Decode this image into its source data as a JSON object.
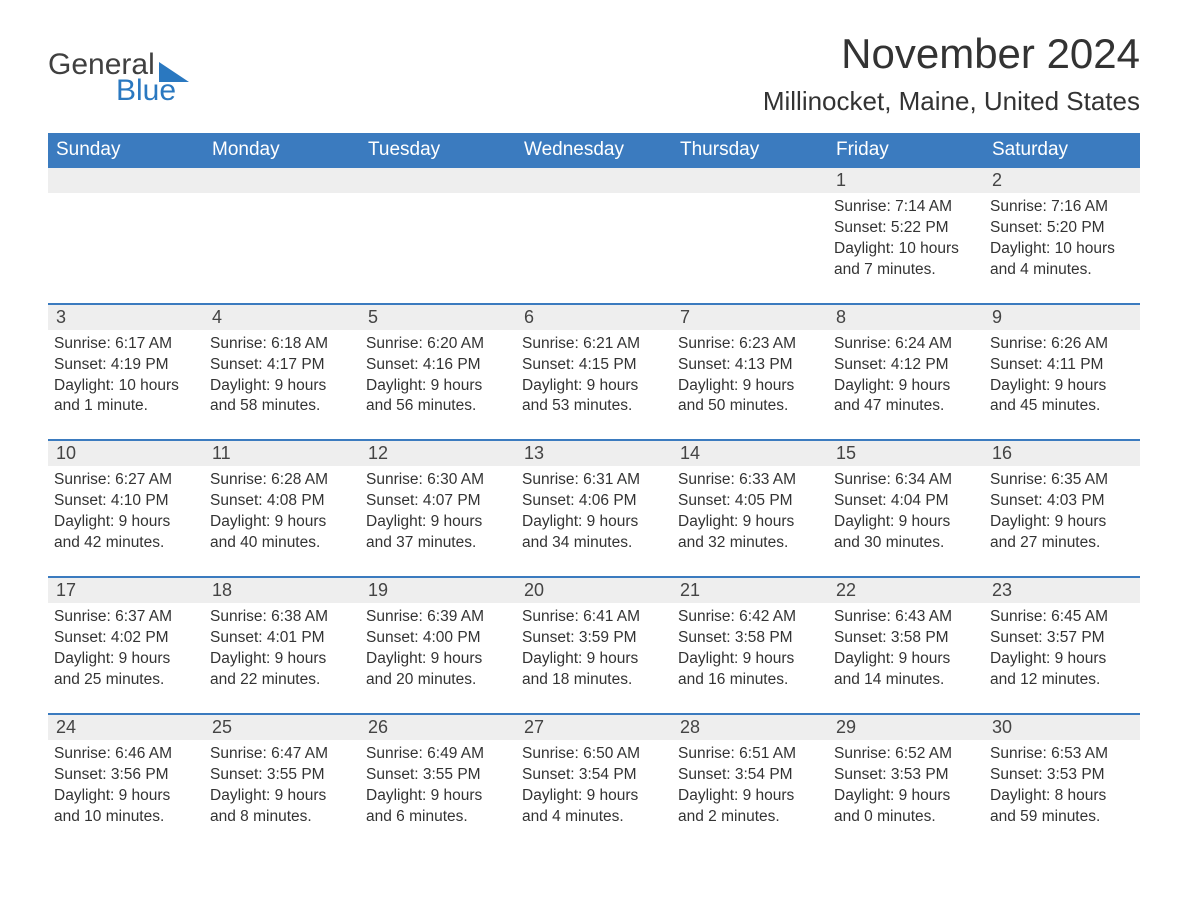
{
  "brand": {
    "word1": "General",
    "word2": "Blue"
  },
  "title": "November 2024",
  "location": "Millinocket, Maine, United States",
  "colors": {
    "header_bg": "#3b7bbf",
    "daynum_bg": "#eeeeee",
    "brand_blue": "#2a78c0",
    "text": "#333333"
  },
  "layout": {
    "columns": 7,
    "start_day_index": 5
  },
  "days_of_week": [
    "Sunday",
    "Monday",
    "Tuesday",
    "Wednesday",
    "Thursday",
    "Friday",
    "Saturday"
  ],
  "days": [
    {
      "n": 1,
      "sunrise": "7:14 AM",
      "sunset": "5:22 PM",
      "daylight": "10 hours and 7 minutes."
    },
    {
      "n": 2,
      "sunrise": "7:16 AM",
      "sunset": "5:20 PM",
      "daylight": "10 hours and 4 minutes."
    },
    {
      "n": 3,
      "sunrise": "6:17 AM",
      "sunset": "4:19 PM",
      "daylight": "10 hours and 1 minute."
    },
    {
      "n": 4,
      "sunrise": "6:18 AM",
      "sunset": "4:17 PM",
      "daylight": "9 hours and 58 minutes."
    },
    {
      "n": 5,
      "sunrise": "6:20 AM",
      "sunset": "4:16 PM",
      "daylight": "9 hours and 56 minutes."
    },
    {
      "n": 6,
      "sunrise": "6:21 AM",
      "sunset": "4:15 PM",
      "daylight": "9 hours and 53 minutes."
    },
    {
      "n": 7,
      "sunrise": "6:23 AM",
      "sunset": "4:13 PM",
      "daylight": "9 hours and 50 minutes."
    },
    {
      "n": 8,
      "sunrise": "6:24 AM",
      "sunset": "4:12 PM",
      "daylight": "9 hours and 47 minutes."
    },
    {
      "n": 9,
      "sunrise": "6:26 AM",
      "sunset": "4:11 PM",
      "daylight": "9 hours and 45 minutes."
    },
    {
      "n": 10,
      "sunrise": "6:27 AM",
      "sunset": "4:10 PM",
      "daylight": "9 hours and 42 minutes."
    },
    {
      "n": 11,
      "sunrise": "6:28 AM",
      "sunset": "4:08 PM",
      "daylight": "9 hours and 40 minutes."
    },
    {
      "n": 12,
      "sunrise": "6:30 AM",
      "sunset": "4:07 PM",
      "daylight": "9 hours and 37 minutes."
    },
    {
      "n": 13,
      "sunrise": "6:31 AM",
      "sunset": "4:06 PM",
      "daylight": "9 hours and 34 minutes."
    },
    {
      "n": 14,
      "sunrise": "6:33 AM",
      "sunset": "4:05 PM",
      "daylight": "9 hours and 32 minutes."
    },
    {
      "n": 15,
      "sunrise": "6:34 AM",
      "sunset": "4:04 PM",
      "daylight": "9 hours and 30 minutes."
    },
    {
      "n": 16,
      "sunrise": "6:35 AM",
      "sunset": "4:03 PM",
      "daylight": "9 hours and 27 minutes."
    },
    {
      "n": 17,
      "sunrise": "6:37 AM",
      "sunset": "4:02 PM",
      "daylight": "9 hours and 25 minutes."
    },
    {
      "n": 18,
      "sunrise": "6:38 AM",
      "sunset": "4:01 PM",
      "daylight": "9 hours and 22 minutes."
    },
    {
      "n": 19,
      "sunrise": "6:39 AM",
      "sunset": "4:00 PM",
      "daylight": "9 hours and 20 minutes."
    },
    {
      "n": 20,
      "sunrise": "6:41 AM",
      "sunset": "3:59 PM",
      "daylight": "9 hours and 18 minutes."
    },
    {
      "n": 21,
      "sunrise": "6:42 AM",
      "sunset": "3:58 PM",
      "daylight": "9 hours and 16 minutes."
    },
    {
      "n": 22,
      "sunrise": "6:43 AM",
      "sunset": "3:58 PM",
      "daylight": "9 hours and 14 minutes."
    },
    {
      "n": 23,
      "sunrise": "6:45 AM",
      "sunset": "3:57 PM",
      "daylight": "9 hours and 12 minutes."
    },
    {
      "n": 24,
      "sunrise": "6:46 AM",
      "sunset": "3:56 PM",
      "daylight": "9 hours and 10 minutes."
    },
    {
      "n": 25,
      "sunrise": "6:47 AM",
      "sunset": "3:55 PM",
      "daylight": "9 hours and 8 minutes."
    },
    {
      "n": 26,
      "sunrise": "6:49 AM",
      "sunset": "3:55 PM",
      "daylight": "9 hours and 6 minutes."
    },
    {
      "n": 27,
      "sunrise": "6:50 AM",
      "sunset": "3:54 PM",
      "daylight": "9 hours and 4 minutes."
    },
    {
      "n": 28,
      "sunrise": "6:51 AM",
      "sunset": "3:54 PM",
      "daylight": "9 hours and 2 minutes."
    },
    {
      "n": 29,
      "sunrise": "6:52 AM",
      "sunset": "3:53 PM",
      "daylight": "9 hours and 0 minutes."
    },
    {
      "n": 30,
      "sunrise": "6:53 AM",
      "sunset": "3:53 PM",
      "daylight": "8 hours and 59 minutes."
    }
  ],
  "labels": {
    "sunrise": "Sunrise:",
    "sunset": "Sunset:",
    "daylight": "Daylight:"
  }
}
